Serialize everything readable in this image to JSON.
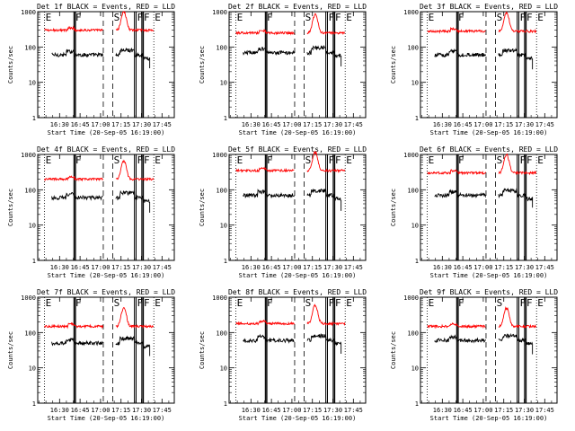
{
  "chart_data": {
    "type": "line",
    "layout": "3x3 grid",
    "shared": {
      "title_suffix": "BLACK = Events, RED = LLD",
      "ylabel": "Counts/sec",
      "xlabel": "Start Time (20-Sep-05 16:19:00)",
      "y_scale": "log",
      "ylim": [
        1,
        1000
      ],
      "y_ticks": [
        1,
        10,
        100,
        1000
      ],
      "y_tick_labels": [
        "1",
        "10",
        "100",
        "1000"
      ],
      "xlim_minutes": [
        -5,
        95
      ],
      "x_ticks_minutes": [
        11,
        26,
        41,
        56,
        71,
        86
      ],
      "x_tick_labels": [
        "16:30",
        "16:45",
        "17:00",
        "17:15",
        "17:30",
        "17:45"
      ],
      "series_colors": {
        "events": "#000000",
        "lld": "#ff0000"
      },
      "attenuator_markers": [
        {
          "label": "E",
          "minutes": 0,
          "style": "dotted"
        },
        {
          "label": "F",
          "minutes": 22,
          "style": "solid"
        },
        {
          "label": "S",
          "minutes": 50,
          "style": "dashed"
        },
        {
          "label": "F",
          "minutes": 67,
          "style": "solid"
        },
        {
          "label": "F",
          "minutes": 72,
          "style": "solid"
        },
        {
          "label": "E",
          "minutes": 80,
          "style": "dotted"
        }
      ],
      "black_bars_minutes": [
        [
          21.5,
          22.7
        ],
        [
          65.8,
          67.0
        ],
        [
          71.2,
          72.4
        ]
      ],
      "dashed_gap_minutes": [
        [
          43,
          52
        ]
      ],
      "red_peak_minutes": 58
    },
    "panels": [
      {
        "title": "Det 1f",
        "events_level": 60,
        "lld_level": 300
      },
      {
        "title": "Det 2f",
        "events_level": 70,
        "lld_level": 250
      },
      {
        "title": "Det 3f",
        "events_level": 60,
        "lld_level": 280
      },
      {
        "title": "Det 4f",
        "events_level": 60,
        "lld_level": 200
      },
      {
        "title": "Det 5f",
        "events_level": 70,
        "lld_level": 350
      },
      {
        "title": "Det 6f",
        "events_level": 70,
        "lld_level": 300
      },
      {
        "title": "Det 7f",
        "events_level": 50,
        "lld_level": 150
      },
      {
        "title": "Det 8f",
        "events_level": 60,
        "lld_level": 180
      },
      {
        "title": "Det 9f",
        "events_level": 60,
        "lld_level": 150
      }
    ]
  }
}
